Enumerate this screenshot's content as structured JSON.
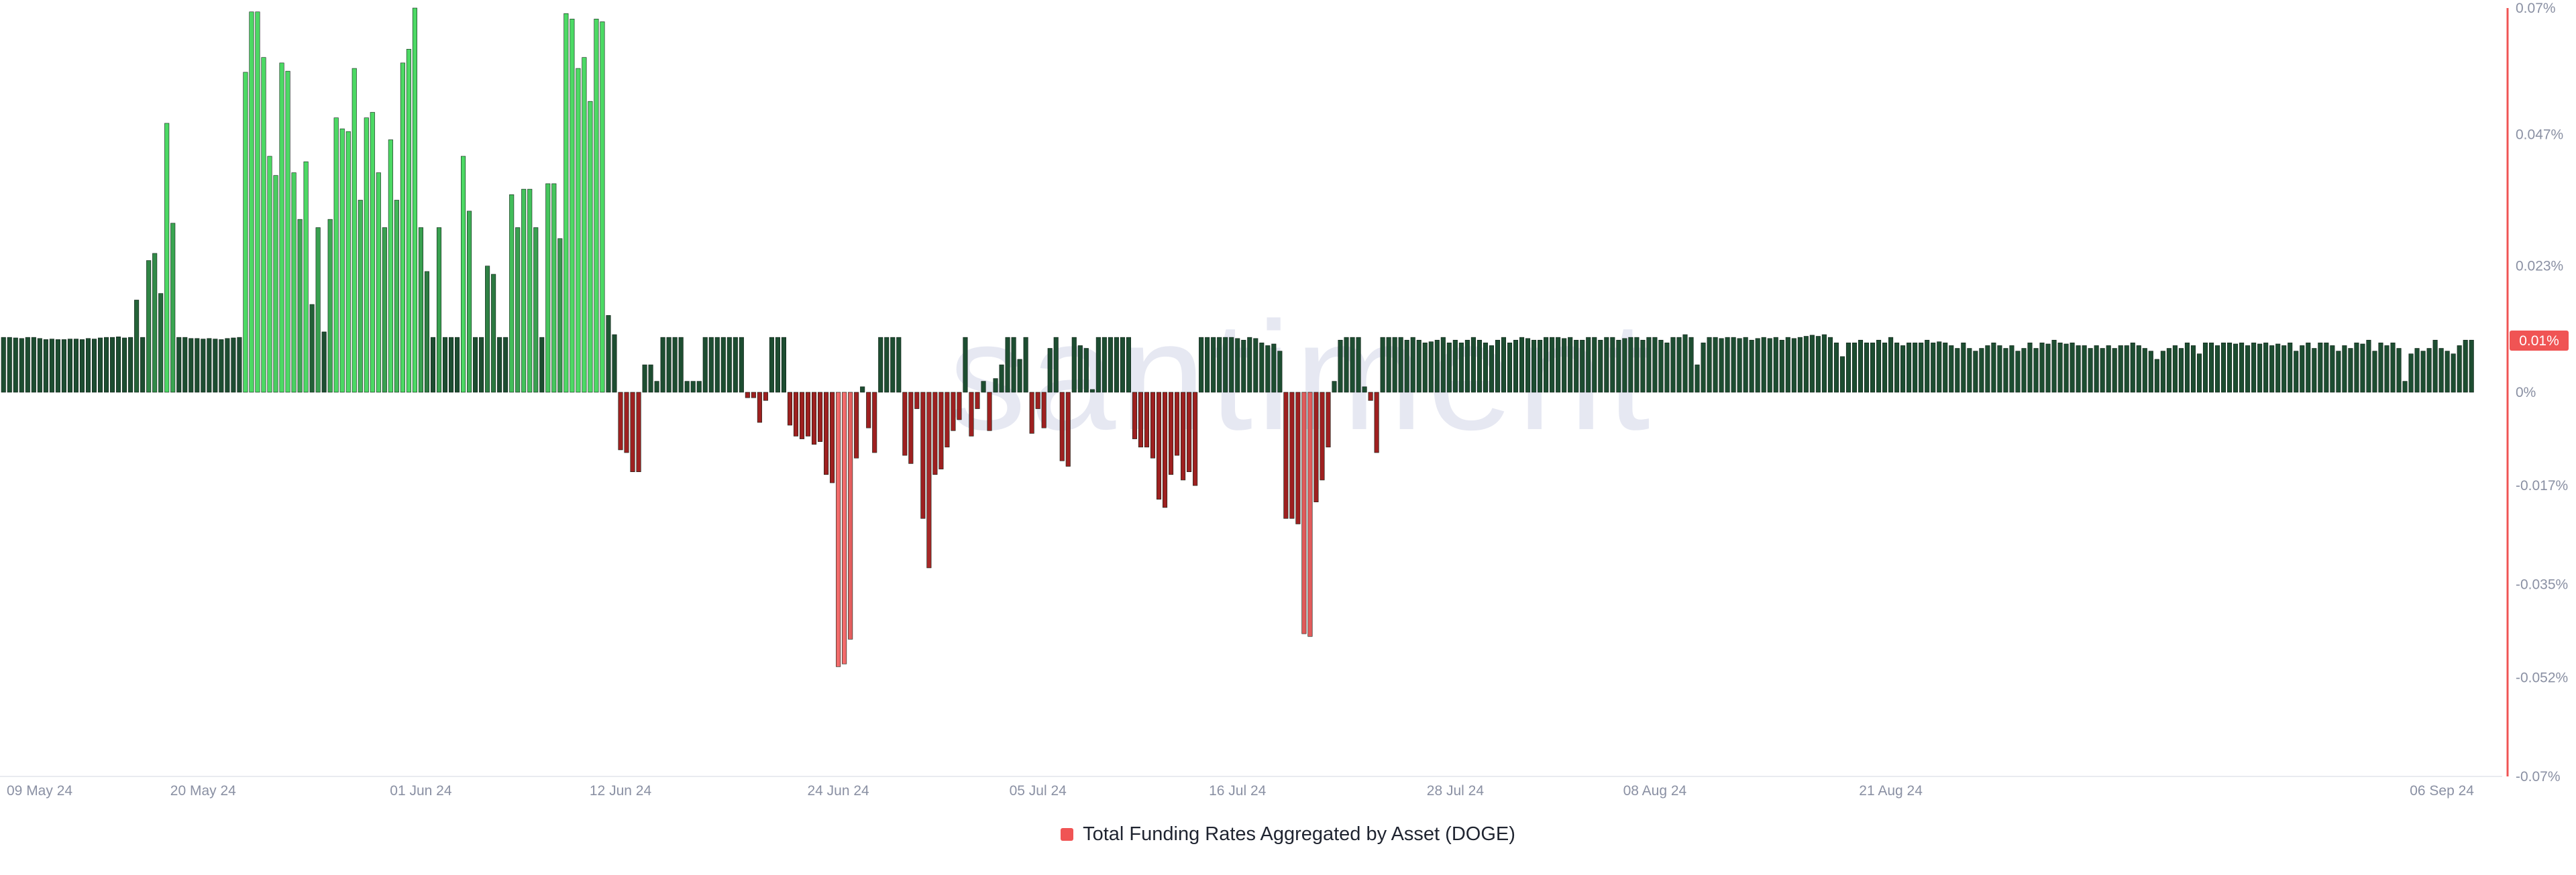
{
  "watermark": "santiment",
  "legend": {
    "label": "Total Funding Rates Aggregated by Asset (DOGE)",
    "color": "#f05454"
  },
  "current_value_badge": {
    "text": "0.01%",
    "color": "#f05454"
  },
  "colors": {
    "positive_dark": "#1d4d31",
    "positive_bright": "#4cd964",
    "negative_dark": "#9e2020",
    "negative_bright": "#f26b6b",
    "axis_line": "#f05454",
    "tick_text": "#8a90a3",
    "grid": "#e9ebf0",
    "watermark": "#e6e8f2"
  },
  "chart_data": {
    "type": "bar",
    "title": "",
    "xlabel": "",
    "ylabel": "",
    "ylim": [
      -0.07,
      0.07
    ],
    "grid": false,
    "legend_position": "bottom-center",
    "y_ticks": [
      {
        "value": 0.07,
        "label": "0.07%"
      },
      {
        "value": 0.047,
        "label": "0.047%"
      },
      {
        "value": 0.023,
        "label": "0.023%"
      },
      {
        "value": 0,
        "label": "0%"
      },
      {
        "value": -0.017,
        "label": "-0.017%"
      },
      {
        "value": -0.035,
        "label": "-0.035%"
      },
      {
        "value": -0.052,
        "label": "-0.052%"
      },
      {
        "value": -0.07,
        "label": "-0.07%"
      }
    ],
    "x_ticks": [
      {
        "index": 0,
        "label": "09 May 24"
      },
      {
        "index": 33,
        "label": "20 May 24"
      },
      {
        "index": 69,
        "label": "01 Jun 24"
      },
      {
        "index": 102,
        "label": "12 Jun 24"
      },
      {
        "index": 138,
        "label": "24 Jun 24"
      },
      {
        "index": 171,
        "label": "05 Jul 24"
      },
      {
        "index": 204,
        "label": "16 Jul 24"
      },
      {
        "index": 240,
        "label": "28 Jul 24"
      },
      {
        "index": 273,
        "label": "08 Aug 24"
      },
      {
        "index": 312,
        "label": "21 Aug 24"
      },
      {
        "index": 357,
        "label": "06 Sep 24"
      }
    ],
    "series": [
      {
        "values": [
          0.01,
          0.01,
          0.0099,
          0.0098,
          0.01,
          0.01,
          0.0098,
          0.0096,
          0.0097,
          0.0096,
          0.0096,
          0.0097,
          0.0097,
          0.0096,
          0.0098,
          0.0097,
          0.0099,
          0.01,
          0.01,
          0.0101,
          0.0099,
          0.01,
          0.0168,
          0.01,
          0.024,
          0.0253,
          0.018,
          0.049,
          0.0308,
          0.01,
          0.01,
          0.0098,
          0.0098,
          0.0097,
          0.0098,
          0.0097,
          0.0096,
          0.0098,
          0.0099,
          0.01,
          0.0583,
          0.0693,
          0.0693,
          0.061,
          0.043,
          0.0395,
          0.06,
          0.0585,
          0.04,
          0.0315,
          0.042,
          0.016,
          0.03,
          0.011,
          0.0315,
          0.05,
          0.048,
          0.0475,
          0.059,
          0.035,
          0.05,
          0.051,
          0.04,
          0.03,
          0.046,
          0.035,
          0.06,
          0.0625,
          0.07,
          0.03,
          0.022,
          0.01,
          0.03,
          0.01,
          0.01,
          0.01,
          0.043,
          0.033,
          0.01,
          0.01,
          0.023,
          0.0215,
          0.01,
          0.01,
          0.036,
          0.03,
          0.037,
          0.037,
          0.03,
          0.01,
          0.038,
          0.038,
          0.028,
          0.069,
          0.068,
          0.059,
          0.061,
          0.053,
          0.068,
          0.0675,
          0.014,
          0.0105,
          -0.0105,
          -0.011,
          -0.0145,
          -0.0145,
          0.005,
          0.005,
          0.002,
          0.01,
          0.01,
          0.01,
          0.01,
          0.002,
          0.002,
          0.002,
          0.01,
          0.01,
          0.01,
          0.01,
          0.01,
          0.01,
          0.01,
          -0.001,
          -0.001,
          -0.0055,
          -0.0015,
          0.01,
          0.01,
          0.01,
          -0.006,
          -0.008,
          -0.0085,
          -0.008,
          -0.0095,
          -0.009,
          -0.015,
          -0.0165,
          -0.05,
          -0.0495,
          -0.045,
          -0.012,
          0.001,
          -0.0065,
          -0.011,
          0.01,
          0.01,
          0.01,
          0.01,
          -0.0115,
          -0.013,
          -0.003,
          -0.023,
          -0.032,
          -0.015,
          -0.014,
          -0.01,
          -0.007,
          -0.005,
          0.01,
          -0.008,
          -0.003,
          0.002,
          -0.007,
          0.0025,
          0.005,
          0.01,
          0.01,
          0.006,
          0.01,
          -0.0075,
          -0.003,
          -0.0065,
          0.008,
          0.01,
          -0.0125,
          -0.0135,
          0.01,
          0.0085,
          0.008,
          0.0005,
          0.01,
          0.01,
          0.01,
          0.01,
          0.01,
          0.01,
          -0.0085,
          -0.01,
          -0.01,
          -0.012,
          -0.0195,
          -0.021,
          -0.015,
          -0.0115,
          -0.016,
          -0.0145,
          -0.017,
          0.01,
          0.01,
          0.01,
          0.01,
          0.01,
          0.01,
          0.0098,
          0.0095,
          0.01,
          0.0098,
          0.009,
          0.0085,
          0.0088,
          0.0075,
          -0.023,
          -0.023,
          -0.024,
          -0.044,
          -0.0445,
          -0.02,
          -0.016,
          -0.01,
          0.002,
          0.0095,
          0.01,
          0.01,
          0.01,
          0.001,
          -0.0015,
          -0.011,
          0.01,
          0.01,
          0.01,
          0.01,
          0.0095,
          0.01,
          0.0095,
          0.009,
          0.0092,
          0.0095,
          0.01,
          0.009,
          0.0095,
          0.009,
          0.0095,
          0.01,
          0.0095,
          0.009,
          0.0085,
          0.0095,
          0.01,
          0.009,
          0.0095,
          0.01,
          0.0098,
          0.0095,
          0.0095,
          0.01,
          0.01,
          0.01,
          0.0098,
          0.01,
          0.0095,
          0.0095,
          0.01,
          0.01,
          0.0095,
          0.01,
          0.01,
          0.0095,
          0.0098,
          0.01,
          0.01,
          0.0095,
          0.01,
          0.01,
          0.0095,
          0.009,
          0.01,
          0.01,
          0.0105,
          0.01,
          0.005,
          0.009,
          0.01,
          0.01,
          0.0098,
          0.01,
          0.01,
          0.0098,
          0.01,
          0.0095,
          0.0098,
          0.01,
          0.0098,
          0.01,
          0.0095,
          0.01,
          0.0098,
          0.01,
          0.0102,
          0.0104,
          0.0102,
          0.0105,
          0.01,
          0.009,
          0.0065,
          0.009,
          0.009,
          0.0095,
          0.009,
          0.009,
          0.0095,
          0.009,
          0.01,
          0.009,
          0.0085,
          0.009,
          0.009,
          0.009,
          0.0095,
          0.009,
          0.0092,
          0.009,
          0.0085,
          0.008,
          0.009,
          0.008,
          0.0075,
          0.008,
          0.0085,
          0.009,
          0.0085,
          0.008,
          0.0085,
          0.0075,
          0.008,
          0.009,
          0.008,
          0.009,
          0.0088,
          0.0095,
          0.009,
          0.0088,
          0.009,
          0.0085,
          0.0085,
          0.008,
          0.0085,
          0.008,
          0.0085,
          0.008,
          0.0085,
          0.0085,
          0.009,
          0.0085,
          0.008,
          0.0075,
          0.006,
          0.0075,
          0.008,
          0.0085,
          0.008,
          0.009,
          0.0085,
          0.007,
          0.009,
          0.009,
          0.0085,
          0.009,
          0.009,
          0.0088,
          0.009,
          0.0085,
          0.009,
          0.0088,
          0.009,
          0.0085,
          0.0088,
          0.0085,
          0.009,
          0.0075,
          0.0085,
          0.009,
          0.008,
          0.009,
          0.009,
          0.0085,
          0.0075,
          0.0085,
          0.008,
          0.009,
          0.0088,
          0.0095,
          0.0075,
          0.009,
          0.0085,
          0.009,
          0.008,
          0.002,
          0.007,
          0.008,
          0.0075,
          0.008,
          0.0095,
          0.008,
          0.0075,
          0.007,
          0.0085,
          0.0095,
          0.0095
        ]
      }
    ]
  }
}
